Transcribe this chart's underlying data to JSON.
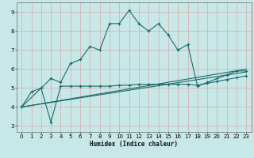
{
  "title": "",
  "xlabel": "Humidex (Indice chaleur)",
  "background_color": "#c8e8e8",
  "grid_color": "#d8a8a8",
  "line_color": "#1a6b6b",
  "xlim": [
    -0.5,
    23.5
  ],
  "ylim": [
    2.7,
    9.5
  ],
  "xticks": [
    0,
    1,
    2,
    3,
    4,
    5,
    6,
    7,
    8,
    9,
    10,
    11,
    12,
    13,
    14,
    15,
    16,
    17,
    18,
    19,
    20,
    21,
    22,
    23
  ],
  "yticks": [
    3,
    4,
    5,
    6,
    7,
    8,
    9
  ],
  "line1_x": [
    0,
    1,
    2,
    3,
    4,
    5,
    6,
    7,
    8,
    9,
    10,
    11,
    12,
    13,
    14,
    15,
    16,
    17,
    18,
    19,
    20,
    21,
    22,
    23
  ],
  "line1_y": [
    4.0,
    4.8,
    5.0,
    5.5,
    5.3,
    6.3,
    6.5,
    7.2,
    7.0,
    8.4,
    8.4,
    9.1,
    8.4,
    8.0,
    8.4,
    7.8,
    7.0,
    7.3,
    5.1,
    5.3,
    5.5,
    5.7,
    5.9,
    5.9
  ],
  "line2_x": [
    0,
    2,
    3,
    4,
    5,
    6,
    7,
    8,
    9,
    10,
    11,
    12,
    13,
    14,
    15,
    16,
    17,
    18,
    19,
    20,
    21,
    22,
    23
  ],
  "line2_y": [
    4.0,
    5.0,
    3.2,
    5.1,
    5.1,
    5.1,
    5.1,
    5.1,
    5.1,
    5.15,
    5.15,
    5.2,
    5.2,
    5.2,
    5.2,
    5.2,
    5.2,
    5.15,
    5.25,
    5.35,
    5.45,
    5.55,
    5.65
  ],
  "line3_x": [
    0,
    23
  ],
  "line3_y": [
    4.0,
    6.0
  ],
  "line4_x": [
    0,
    23
  ],
  "line4_y": [
    4.0,
    5.85
  ]
}
